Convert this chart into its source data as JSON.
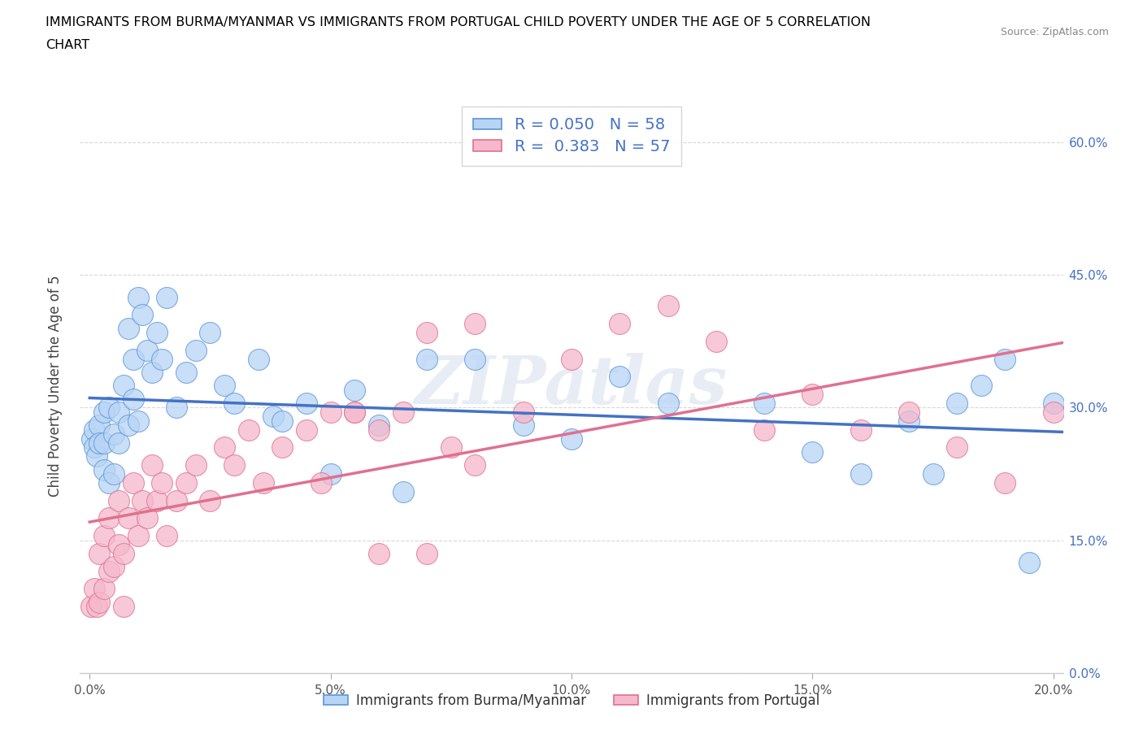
{
  "title_line1": "IMMIGRANTS FROM BURMA/MYANMAR VS IMMIGRANTS FROM PORTUGAL CHILD POVERTY UNDER THE AGE OF 5 CORRELATION",
  "title_line2": "CHART",
  "source": "Source: ZipAtlas.com",
  "ylabel_label": "Child Poverty Under the Age of 5",
  "xlim": [
    -0.002,
    0.202
  ],
  "ylim": [
    0.0,
    0.65
  ],
  "xticks": [
    0.0,
    0.05,
    0.1,
    0.15,
    0.2
  ],
  "xtick_labels": [
    "0.0%",
    "5.0%",
    "10.0%",
    "15.0%",
    "20.0%"
  ],
  "yticks": [
    0.0,
    0.15,
    0.3,
    0.45,
    0.6
  ],
  "ytick_labels": [
    "0.0%",
    "15.0%",
    "30.0%",
    "45.0%",
    "60.0%"
  ],
  "legend1_label": "R = 0.050   N = 58",
  "legend2_label": "R =  0.383   N = 57",
  "series1_color": "#b8d4f5",
  "series2_color": "#f5b8cc",
  "series1_edge_color": "#5a96d8",
  "series2_edge_color": "#e0708a",
  "series1_line_color": "#4472c4",
  "series2_line_color": "#e07090",
  "watermark": "ZIPatlas",
  "background_color": "#ffffff",
  "grid_color": "#c8c8c8",
  "tick_color": "#4472c4",
  "series1_name": "Immigrants from Burma/Myanmar",
  "series2_name": "Immigrants from Portugal",
  "series1_x": [
    0.0005,
    0.001,
    0.001,
    0.0015,
    0.002,
    0.002,
    0.003,
    0.003,
    0.003,
    0.004,
    0.004,
    0.005,
    0.005,
    0.006,
    0.006,
    0.007,
    0.008,
    0.008,
    0.009,
    0.009,
    0.01,
    0.01,
    0.011,
    0.012,
    0.013,
    0.014,
    0.015,
    0.016,
    0.018,
    0.02,
    0.022,
    0.025,
    0.028,
    0.03,
    0.035,
    0.038,
    0.04,
    0.045,
    0.05,
    0.055,
    0.06,
    0.065,
    0.07,
    0.08,
    0.09,
    0.1,
    0.11,
    0.12,
    0.14,
    0.15,
    0.16,
    0.17,
    0.175,
    0.18,
    0.185,
    0.19,
    0.195,
    0.2
  ],
  "series1_y": [
    0.265,
    0.275,
    0.255,
    0.245,
    0.28,
    0.26,
    0.23,
    0.295,
    0.26,
    0.215,
    0.3,
    0.27,
    0.225,
    0.295,
    0.26,
    0.325,
    0.39,
    0.28,
    0.355,
    0.31,
    0.425,
    0.285,
    0.405,
    0.365,
    0.34,
    0.385,
    0.355,
    0.425,
    0.3,
    0.34,
    0.365,
    0.385,
    0.325,
    0.305,
    0.355,
    0.29,
    0.285,
    0.305,
    0.225,
    0.32,
    0.28,
    0.205,
    0.355,
    0.355,
    0.28,
    0.265,
    0.335,
    0.305,
    0.305,
    0.25,
    0.225,
    0.285,
    0.225,
    0.305,
    0.325,
    0.355,
    0.125,
    0.305
  ],
  "series2_x": [
    0.0003,
    0.001,
    0.0015,
    0.002,
    0.002,
    0.003,
    0.003,
    0.004,
    0.004,
    0.005,
    0.006,
    0.006,
    0.007,
    0.007,
    0.008,
    0.009,
    0.01,
    0.011,
    0.012,
    0.013,
    0.014,
    0.015,
    0.016,
    0.018,
    0.02,
    0.022,
    0.025,
    0.028,
    0.03,
    0.033,
    0.036,
    0.04,
    0.045,
    0.048,
    0.05,
    0.055,
    0.06,
    0.065,
    0.07,
    0.075,
    0.08,
    0.09,
    0.1,
    0.11,
    0.12,
    0.13,
    0.14,
    0.15,
    0.16,
    0.17,
    0.18,
    0.19,
    0.2,
    0.06,
    0.08,
    0.055,
    0.07
  ],
  "series2_y": [
    0.075,
    0.095,
    0.075,
    0.08,
    0.135,
    0.095,
    0.155,
    0.115,
    0.175,
    0.12,
    0.145,
    0.195,
    0.135,
    0.075,
    0.175,
    0.215,
    0.155,
    0.195,
    0.175,
    0.235,
    0.195,
    0.215,
    0.155,
    0.195,
    0.215,
    0.235,
    0.195,
    0.255,
    0.235,
    0.275,
    0.215,
    0.255,
    0.275,
    0.215,
    0.295,
    0.295,
    0.275,
    0.295,
    0.385,
    0.255,
    0.235,
    0.295,
    0.355,
    0.395,
    0.415,
    0.375,
    0.275,
    0.315,
    0.275,
    0.295,
    0.255,
    0.215,
    0.295,
    0.135,
    0.395,
    0.295,
    0.135
  ]
}
